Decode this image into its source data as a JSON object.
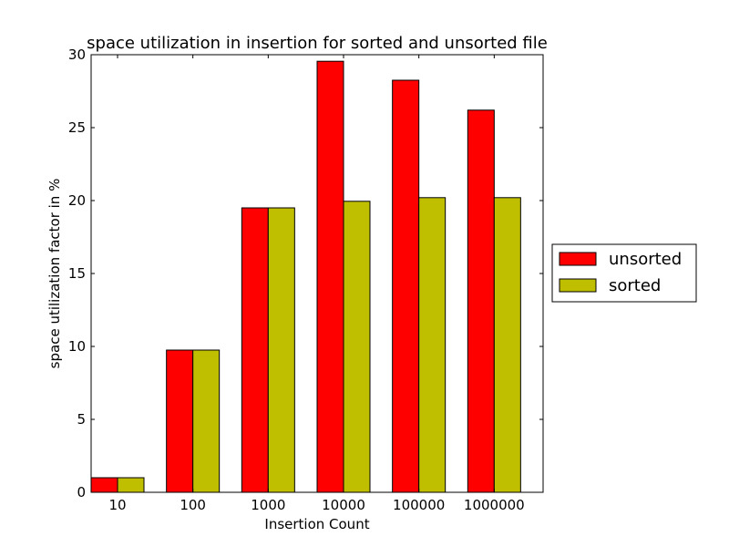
{
  "chart_data": {
    "type": "bar",
    "title": "space utilization in insertion for sorted and unsorted file",
    "xlabel": "Insertion Count",
    "ylabel": "space utilization factor in %",
    "categories": [
      "10",
      "100",
      "1000",
      "10000",
      "100000",
      "1000000"
    ],
    "series": [
      {
        "name": "unsorted",
        "color": "#ff0000",
        "values": [
          1.0,
          9.75,
          19.5,
          29.55,
          28.25,
          26.2
        ]
      },
      {
        "name": "sorted",
        "color": "#bfbf00",
        "values": [
          1.0,
          9.75,
          19.5,
          19.95,
          20.2,
          20.2
        ]
      }
    ],
    "ylim": [
      0,
      30
    ],
    "yticks": [
      0,
      5,
      10,
      15,
      20,
      25,
      30
    ],
    "legend_position": "right-center",
    "grid": false
  }
}
